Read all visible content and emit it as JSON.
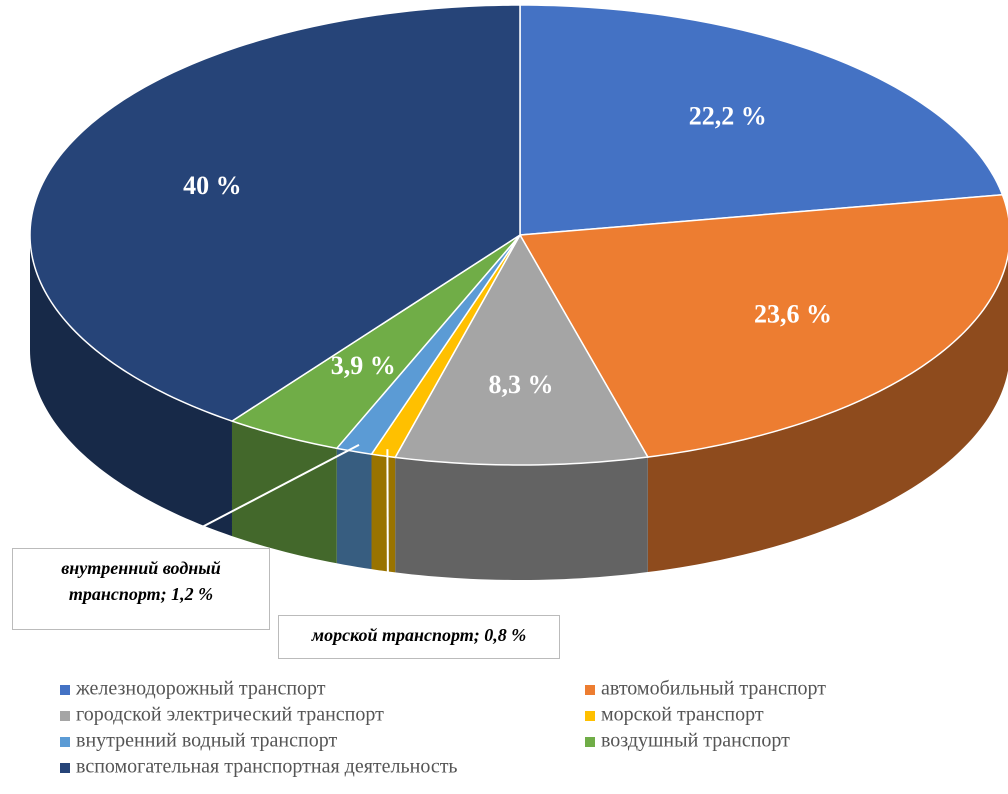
{
  "chart_data": {
    "type": "pie",
    "categories": [
      "железнодорожный транспорт",
      "автомобильный транспорт",
      "городской электрический транспорт",
      "морской транспорт",
      "внутренний водный транспорт",
      "воздушный транспорт",
      "вспомогательная транспортная деятельность"
    ],
    "values": [
      22.2,
      23.6,
      8.3,
      0.8,
      1.2,
      3.9,
      40
    ],
    "value_labels": [
      "22,2 %",
      "23,6 %",
      "8,3 %",
      "морской транспорт; 0,8 %",
      "внутренний водный транспорт; 1,2 %",
      "3,9 %",
      "40 %"
    ],
    "colors": [
      "#4472c4",
      "#ed7d31",
      "#a5a5a5",
      "#ffc000",
      "#5b9bd5",
      "#70ad47",
      "#264478"
    ],
    "legend": "bottom"
  }
}
